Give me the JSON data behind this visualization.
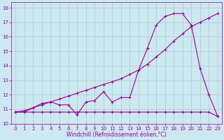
{
  "xlabel": "Windchill (Refroidissement éolien,°C)",
  "background_color": "#cce8f0",
  "line_color": "#990099",
  "grid_color": "#aacccc",
  "xlim": [
    -0.5,
    23.5
  ],
  "ylim": [
    10,
    18.4
  ],
  "xticks": [
    0,
    1,
    2,
    3,
    4,
    5,
    6,
    7,
    8,
    9,
    10,
    11,
    12,
    13,
    14,
    15,
    16,
    17,
    18,
    19,
    20,
    21,
    22,
    23
  ],
  "yticks": [
    10,
    11,
    12,
    13,
    14,
    15,
    16,
    17,
    18
  ],
  "hours": [
    0,
    1,
    2,
    3,
    4,
    5,
    6,
    7,
    8,
    9,
    10,
    11,
    12,
    13,
    14,
    15,
    16,
    17,
    18,
    19,
    20,
    21,
    22,
    23
  ],
  "flat_y": [
    10.8,
    10.8,
    10.8,
    10.8,
    10.8,
    10.8,
    10.8,
    10.8,
    10.8,
    10.8,
    10.8,
    10.8,
    10.8,
    10.8,
    10.8,
    10.8,
    10.8,
    10.8,
    10.8,
    10.8,
    10.8,
    10.8,
    10.8,
    10.5
  ],
  "diag_y": [
    10.8,
    10.9,
    11.1,
    11.3,
    11.5,
    11.7,
    11.9,
    12.1,
    12.3,
    12.5,
    12.7,
    12.9,
    13.1,
    13.4,
    13.7,
    14.1,
    14.6,
    15.1,
    15.7,
    16.2,
    16.7,
    17.0,
    17.3,
    17.6
  ],
  "jagg_y": [
    10.8,
    10.8,
    11.1,
    11.4,
    11.5,
    11.3,
    11.3,
    10.6,
    11.5,
    11.6,
    12.2,
    11.5,
    11.8,
    11.8,
    13.7,
    15.2,
    16.8,
    17.4,
    17.6,
    17.6,
    16.8,
    13.8,
    12.0,
    10.5
  ],
  "xlabel_fontsize": 5.5,
  "tick_fontsize": 5.0
}
